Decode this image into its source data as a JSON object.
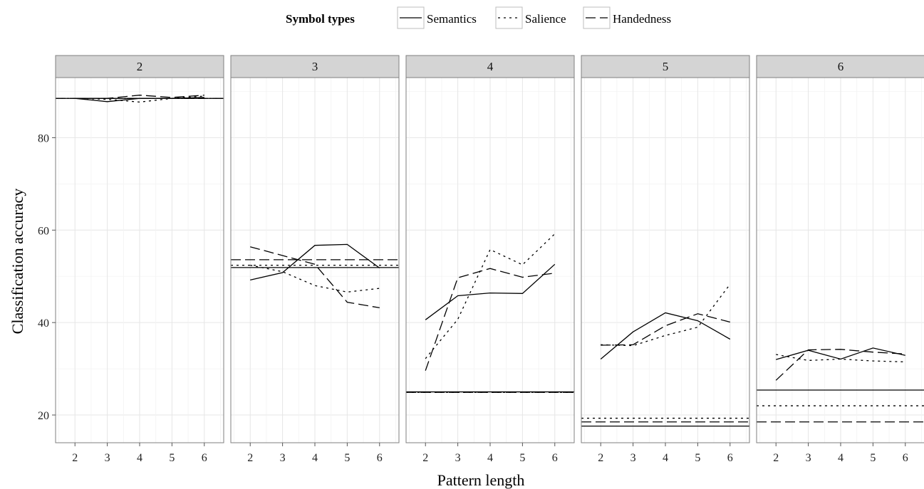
{
  "chart_data": {
    "type": "line",
    "legend": {
      "title": "Symbol types",
      "placement": "top",
      "entries": [
        {
          "name": "Semantics",
          "dash": "solid"
        },
        {
          "name": "Salience",
          "dash": "dotted"
        },
        {
          "name": "Handedness",
          "dash": "dashed"
        }
      ]
    },
    "xlabel": "Pattern length",
    "ylabel": "Classification accuracy",
    "x": [
      2,
      3,
      4,
      5,
      6
    ],
    "x_ticks": [
      "2",
      "3",
      "4",
      "5",
      "6"
    ],
    "y_ticks": [
      20,
      40,
      60,
      80
    ],
    "ylim": [
      14,
      93
    ],
    "grid": true,
    "panels": [
      {
        "label": "2",
        "series": [
          {
            "name": "Semantics",
            "values": [
              88.5,
              87.8,
              88.5,
              88.5,
              88.7
            ]
          },
          {
            "name": "Salience",
            "values": [
              88.5,
              88.3,
              87.7,
              88.5,
              89.0
            ]
          },
          {
            "name": "Handedness",
            "values": [
              88.5,
              88.5,
              89.2,
              88.7,
              89.2
            ]
          }
        ],
        "baselines": [
          {
            "name": "Semantics",
            "value": 88.5
          },
          {
            "name": "Salience",
            "value": 88.5
          },
          {
            "name": "Handedness",
            "value": 88.5
          }
        ]
      },
      {
        "label": "3",
        "series": [
          {
            "name": "Semantics",
            "values": [
              49.2,
              50.8,
              56.7,
              56.9,
              51.8
            ]
          },
          {
            "name": "Salience",
            "values": [
              52.4,
              51.0,
              48.0,
              46.6,
              47.4
            ]
          },
          {
            "name": "Handedness",
            "values": [
              56.4,
              54.5,
              52.6,
              44.4,
              43.2
            ]
          }
        ],
        "baselines": [
          {
            "name": "Semantics",
            "value": 51.9
          },
          {
            "name": "Salience",
            "value": 52.4
          },
          {
            "name": "Handedness",
            "value": 53.6
          }
        ]
      },
      {
        "label": "4",
        "series": [
          {
            "name": "Semantics",
            "values": [
              40.6,
              45.8,
              46.4,
              46.3,
              52.6
            ]
          },
          {
            "name": "Salience",
            "values": [
              32.2,
              40.7,
              55.8,
              52.5,
              59.2
            ]
          },
          {
            "name": "Handedness",
            "values": [
              29.6,
              49.7,
              51.7,
              49.8,
              50.7
            ]
          }
        ],
        "baselines": [
          {
            "name": "Semantics",
            "value": 25.0
          },
          {
            "name": "Salience",
            "value": 24.9
          },
          {
            "name": "Handedness",
            "value": 24.9
          }
        ]
      },
      {
        "label": "5",
        "series": [
          {
            "name": "Semantics",
            "values": [
              32.1,
              38.0,
              42.1,
              40.4,
              36.4
            ]
          },
          {
            "name": "Salience",
            "values": [
              35.2,
              35.0,
              37.2,
              39.0,
              48.3
            ]
          },
          {
            "name": "Handedness",
            "values": [
              35.1,
              35.2,
              39.3,
              41.9,
              40.1
            ]
          }
        ],
        "baselines": [
          {
            "name": "Semantics",
            "value": 17.6
          },
          {
            "name": "Salience",
            "value": 19.3
          },
          {
            "name": "Handedness",
            "value": 18.5
          }
        ]
      },
      {
        "label": "6",
        "series": [
          {
            "name": "Semantics",
            "values": [
              32.0,
              34.0,
              32.1,
              34.5,
              32.9
            ]
          },
          {
            "name": "Salience",
            "values": [
              33.1,
              31.8,
              32.1,
              31.7,
              31.5
            ]
          },
          {
            "name": "Handedness",
            "values": [
              27.5,
              34.1,
              34.2,
              33.6,
              33.2
            ]
          }
        ],
        "baselines": [
          {
            "name": "Semantics",
            "value": 25.4
          },
          {
            "name": "Salience",
            "value": 22.0
          },
          {
            "name": "Handedness",
            "value": 18.5
          }
        ]
      }
    ]
  }
}
